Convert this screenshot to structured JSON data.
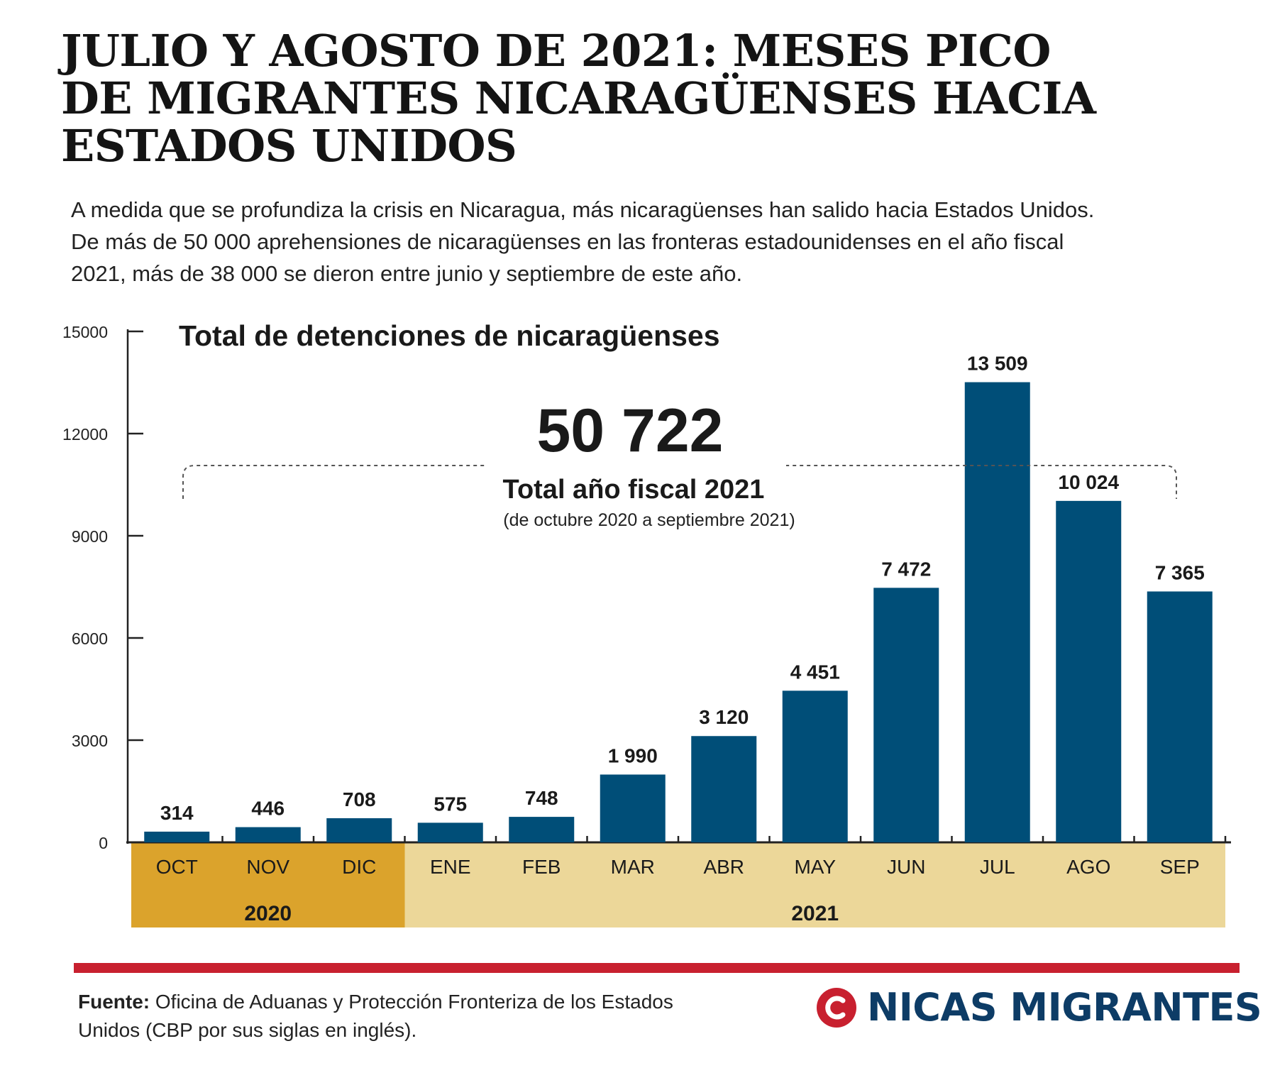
{
  "header": {
    "title_lines": [
      "JULIO Y AGOSTO DE 2021: MESES PICO",
      "DE MIGRANTES NICARAGÜENSES HACIA",
      "ESTADOS UNIDOS"
    ],
    "lede_lines": [
      "A medida que se profundiza la crisis en Nicaragua, más nicaragüenses han salido hacia Estados Unidos.",
      "De más de 50 000 aprehensiones de nicaragüenses en las fronteras estadounidenses en el año fiscal",
      "2021, más de 38 000 se dieron entre junio y septiembre de este año."
    ]
  },
  "chart_data": {
    "type": "bar",
    "title": "Total de detenciones de nicaragüenses",
    "categories": [
      "OCT",
      "NOV",
      "DIC",
      "ENE",
      "FEB",
      "MAR",
      "ABR",
      "MAY",
      "JUN",
      "JUL",
      "AGO",
      "SEP"
    ],
    "values": [
      314,
      446,
      708,
      575,
      748,
      1990,
      3120,
      4451,
      7472,
      13509,
      10024,
      7365
    ],
    "data_labels": [
      "314",
      "446",
      "708",
      "575",
      "748",
      "1 990",
      "3 120",
      "4 451",
      "7 472",
      "13 509",
      "10 024",
      "7 365"
    ],
    "ylim": [
      0,
      15000
    ],
    "yticks": [
      0,
      3000,
      6000,
      9000,
      12000,
      15000
    ],
    "ytick_labels": [
      "0",
      "3000",
      "6000",
      "9000",
      "12000",
      "15000"
    ],
    "year_groups": [
      {
        "label": "2020",
        "months": [
          "OCT",
          "NOV",
          "DIC"
        ],
        "color": "#dba32c"
      },
      {
        "label": "2021",
        "months": [
          "ENE",
          "FEB",
          "MAR",
          "ABR",
          "MAY",
          "JUN",
          "JUL",
          "AGO",
          "SEP"
        ],
        "color": "#ecd799"
      }
    ],
    "annotation": {
      "total": "50 722",
      "label": "Total año fiscal 2021",
      "sublabel": "(de octubre 2020 a septiembre 2021)"
    },
    "bar_color": "#004e78",
    "grid": false
  },
  "footer": {
    "source_label": "Fuente:",
    "source_text": " Oficina de Aduanas y Protección Fronteriza de los Estados Unidos (CBP por sus siglas en inglés).",
    "brand_name": "NICAS MIGRANTES",
    "brand_color": "#0d3c66",
    "rule_color": "#c8202f"
  }
}
